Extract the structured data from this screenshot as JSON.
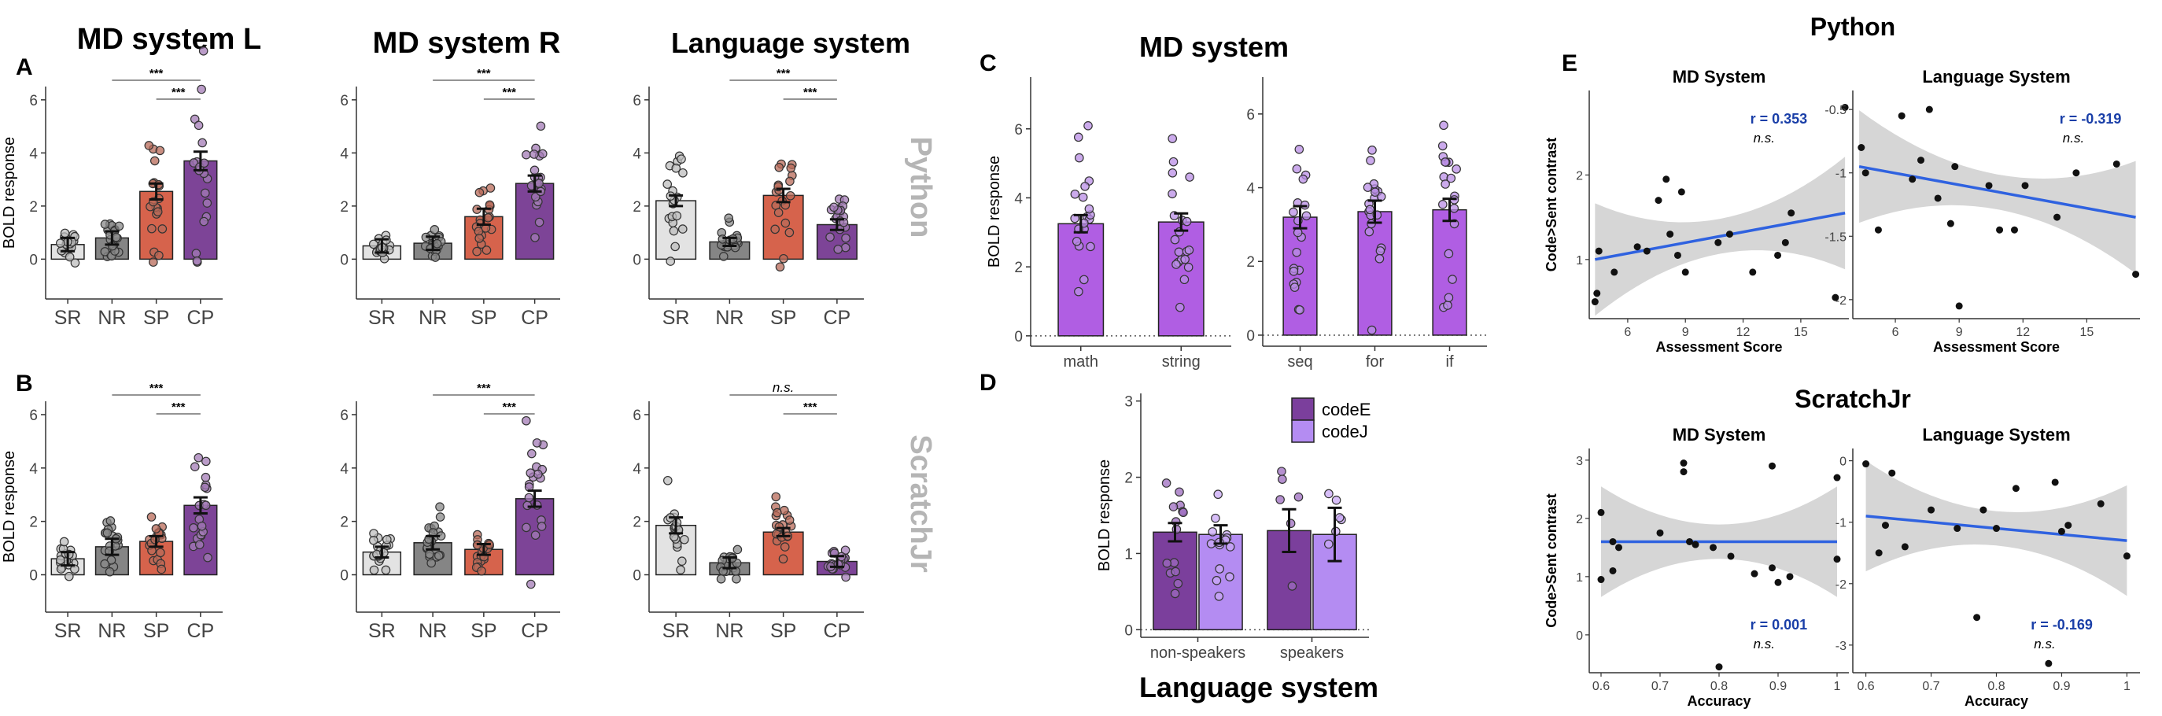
{
  "panel_letters": {
    "A": "A",
    "B": "B",
    "C": "C",
    "D": "D",
    "E": "E"
  },
  "col_titles": {
    "md_left": "MD system L",
    "md_right": "MD system R",
    "lang": "Language system"
  },
  "row_labels": {
    "python": "Python",
    "scratch": "ScratchJr"
  },
  "c_title": "MD system",
  "d_title": "Language system",
  "e_titles": {
    "python": "Python",
    "scratch": "ScratchJr"
  },
  "axis_labels": {
    "bold": "BOLD response",
    "code_sent": "Code>Sent contrast",
    "assessment": "Assessment Score",
    "accuracy": "Accuracy"
  },
  "sig": {
    "stars": "***",
    "ns": "n.s."
  },
  "colors": {
    "SR": "#e3e3e3",
    "NR": "#858585",
    "SP": "#d6634c",
    "CP": "#7d4497",
    "C_bar": "#b05ee3",
    "codeE": "#7b3f9c",
    "codeJ": "#b48cf2",
    "fit": "#2f62e0",
    "band": "#d6d6d6",
    "sigtext": "#1a3fa8"
  },
  "chart_data": [
    {
      "id": "A1",
      "type": "bar",
      "title": "MD system L",
      "categories": [
        "SR",
        "NR",
        "SP",
        "CP"
      ],
      "values": [
        0.55,
        0.8,
        2.55,
        3.7
      ],
      "se": [
        0.25,
        0.25,
        0.3,
        0.35
      ],
      "ylim": [
        -1.5,
        6.5
      ],
      "yticks": [
        0,
        2,
        4,
        6
      ],
      "ylabel": "BOLD response",
      "sig": [
        {
          "from": 1,
          "to": 3,
          "label": "***"
        },
        {
          "from": 2,
          "to": 3,
          "label": "***"
        }
      ]
    },
    {
      "id": "A2",
      "type": "bar",
      "title": "MD system R",
      "categories": [
        "SR",
        "NR",
        "SP",
        "CP"
      ],
      "values": [
        0.5,
        0.6,
        1.6,
        2.85
      ],
      "se": [
        0.25,
        0.25,
        0.3,
        0.3
      ],
      "ylim": [
        -1.5,
        6.5
      ],
      "yticks": [
        0,
        2,
        4,
        6
      ],
      "ylabel": "",
      "sig": [
        {
          "from": 1,
          "to": 3,
          "label": "***"
        },
        {
          "from": 2,
          "to": 3,
          "label": "***"
        }
      ]
    },
    {
      "id": "A3",
      "type": "bar",
      "title": "Language system",
      "categories": [
        "SR",
        "NR",
        "SP",
        "CP"
      ],
      "values": [
        2.2,
        0.65,
        2.4,
        1.3
      ],
      "se": [
        0.2,
        0.15,
        0.25,
        0.2
      ],
      "ylim": [
        -1.5,
        6.5
      ],
      "yticks": [
        0,
        2,
        4,
        6
      ],
      "ylabel": "",
      "sig": [
        {
          "from": 1,
          "to": 3,
          "label": "***"
        },
        {
          "from": 2,
          "to": 3,
          "label": "***"
        }
      ]
    },
    {
      "id": "B1",
      "type": "bar",
      "categories": [
        "SR",
        "NR",
        "SP",
        "CP"
      ],
      "values": [
        0.6,
        1.05,
        1.25,
        2.6
      ],
      "se": [
        0.25,
        0.3,
        0.2,
        0.3
      ],
      "ylim": [
        -1.4,
        6.5
      ],
      "yticks": [
        0,
        2,
        4,
        6
      ],
      "ylabel": "BOLD response",
      "sig": [
        {
          "from": 1,
          "to": 3,
          "label": "***"
        },
        {
          "from": 2,
          "to": 3,
          "label": "***"
        }
      ]
    },
    {
      "id": "B2",
      "type": "bar",
      "categories": [
        "SR",
        "NR",
        "SP",
        "CP"
      ],
      "values": [
        0.85,
        1.2,
        0.95,
        2.85
      ],
      "se": [
        0.2,
        0.25,
        0.2,
        0.3
      ],
      "ylim": [
        -1.4,
        6.5
      ],
      "yticks": [
        0,
        2,
        4,
        6
      ],
      "ylabel": "",
      "sig": [
        {
          "from": 1,
          "to": 3,
          "label": "***"
        },
        {
          "from": 2,
          "to": 3,
          "label": "***"
        }
      ]
    },
    {
      "id": "B3",
      "type": "bar",
      "categories": [
        "SR",
        "NR",
        "SP",
        "CP"
      ],
      "values": [
        1.85,
        0.45,
        1.6,
        0.5
      ],
      "se": [
        0.3,
        0.2,
        0.15,
        0.2
      ],
      "ylim": [
        -1.4,
        6.5
      ],
      "yticks": [
        0,
        2,
        4,
        6
      ],
      "ylabel": "",
      "sig": [
        {
          "from": 1,
          "to": 3,
          "label": "n.s."
        },
        {
          "from": 2,
          "to": 3,
          "label": "***"
        }
      ]
    },
    {
      "id": "C1",
      "type": "bar",
      "title": "MD system",
      "categories": [
        "math",
        "string"
      ],
      "values": [
        3.25,
        3.3
      ],
      "se": [
        0.25,
        0.25
      ],
      "ylim": [
        -0.3,
        7.5
      ],
      "yticks": [
        0,
        2,
        4,
        6
      ],
      "ylabel": "BOLD response"
    },
    {
      "id": "C2",
      "type": "bar",
      "categories": [
        "seq",
        "for",
        "if"
      ],
      "values": [
        3.2,
        3.35,
        3.4
      ],
      "se": [
        0.3,
        0.3,
        0.3
      ],
      "ylim": [
        -0.3,
        7.0
      ],
      "yticks": [
        0,
        2,
        4,
        6
      ],
      "ylabel": ""
    },
    {
      "id": "D",
      "type": "bar",
      "title": "Language system",
      "categories": [
        "non-speakers",
        "speakers"
      ],
      "series": [
        {
          "name": "codeE",
          "values": [
            1.28,
            1.3
          ]
        },
        {
          "name": "codeJ",
          "values": [
            1.25,
            1.25
          ]
        }
      ],
      "se": [
        [
          0.12,
          0.28
        ],
        [
          0.12,
          0.35
        ]
      ],
      "ylim": [
        -0.1,
        3.1
      ],
      "yticks": [
        0,
        1,
        2,
        3
      ],
      "ylabel": "BOLD response"
    },
    {
      "id": "E1",
      "type": "scatter",
      "title": "MD System",
      "xlabel": "Assessment Score",
      "ylabel": "Code>Sent contrast",
      "xlim": [
        4,
        17.5
      ],
      "ylim": [
        0.3,
        3.0
      ],
      "xticks": [
        6,
        9,
        12,
        15
      ],
      "yticks": [
        1,
        2
      ],
      "r": "r =  0.353",
      "sig": "n.s.",
      "fit": [
        [
          4.3,
          1.0
        ],
        [
          17.3,
          1.55
        ]
      ],
      "points": [
        [
          4.3,
          0.5
        ],
        [
          4.4,
          0.6
        ],
        [
          4.5,
          1.1
        ],
        [
          5.3,
          0.85
        ],
        [
          6.5,
          1.15
        ],
        [
          7.0,
          1.1
        ],
        [
          7.6,
          1.7
        ],
        [
          8.0,
          1.95
        ],
        [
          8.2,
          1.3
        ],
        [
          8.6,
          1.05
        ],
        [
          8.8,
          1.8
        ],
        [
          9.0,
          0.85
        ],
        [
          10.7,
          1.2
        ],
        [
          11.3,
          1.3
        ],
        [
          12.5,
          0.85
        ],
        [
          13.8,
          1.05
        ],
        [
          14.2,
          1.2
        ],
        [
          14.5,
          1.55
        ],
        [
          16.8,
          0.55
        ],
        [
          17.3,
          2.8
        ]
      ]
    },
    {
      "id": "E2",
      "type": "scatter",
      "title": "Language System",
      "xlabel": "Assessment Score",
      "ylabel": "",
      "xlim": [
        4,
        17.5
      ],
      "ylim": [
        -2.15,
        -0.35
      ],
      "xticks": [
        6,
        9,
        12,
        15
      ],
      "yticks": [
        -2.0,
        -1.5,
        -1.0,
        -0.5
      ],
      "r": "r =  -0.319",
      "sig": "n.s.",
      "fit": [
        [
          4.3,
          -0.95
        ],
        [
          17.3,
          -1.35
        ]
      ],
      "points": [
        [
          4.4,
          -0.8
        ],
        [
          4.6,
          -1.0
        ],
        [
          5.2,
          -1.45
        ],
        [
          6.3,
          -0.55
        ],
        [
          6.8,
          -1.05
        ],
        [
          7.2,
          -0.9
        ],
        [
          7.6,
          -0.5
        ],
        [
          8.0,
          -1.2
        ],
        [
          8.6,
          -1.4
        ],
        [
          8.8,
          -0.95
        ],
        [
          9.0,
          -2.05
        ],
        [
          10.4,
          -1.1
        ],
        [
          10.9,
          -1.45
        ],
        [
          11.6,
          -1.45
        ],
        [
          12.1,
          -1.1
        ],
        [
          13.6,
          -1.35
        ],
        [
          14.5,
          -1.0
        ],
        [
          16.4,
          -0.93
        ],
        [
          17.3,
          -1.8
        ]
      ]
    },
    {
      "id": "E3",
      "type": "scatter",
      "title": "MD System",
      "xlabel": "Accuracy",
      "ylabel": "Code>Sent contrast",
      "xlim": [
        0.58,
        1.02
      ],
      "ylim": [
        -0.65,
        3.2
      ],
      "xticks": [
        0.6,
        0.7,
        0.8,
        0.9,
        1.0
      ],
      "yticks": [
        0,
        1,
        2,
        3
      ],
      "r": "r =  0.001",
      "sig": "n.s.",
      "fit": [
        [
          0.6,
          1.6
        ],
        [
          1.0,
          1.6
        ]
      ],
      "points": [
        [
          0.6,
          2.1
        ],
        [
          0.6,
          0.95
        ],
        [
          0.62,
          1.1
        ],
        [
          0.62,
          1.6
        ],
        [
          0.63,
          1.5
        ],
        [
          0.7,
          1.75
        ],
        [
          0.74,
          2.95
        ],
        [
          0.74,
          2.8
        ],
        [
          0.75,
          1.6
        ],
        [
          0.76,
          1.55
        ],
        [
          0.79,
          1.5
        ],
        [
          0.8,
          -0.55
        ],
        [
          0.82,
          1.35
        ],
        [
          0.86,
          1.05
        ],
        [
          0.89,
          2.9
        ],
        [
          0.89,
          1.15
        ],
        [
          0.9,
          0.9
        ],
        [
          0.92,
          1.0
        ],
        [
          1.0,
          2.7
        ],
        [
          1.0,
          1.3
        ]
      ]
    },
    {
      "id": "E4",
      "type": "scatter",
      "title": "Language System",
      "xlabel": "Accuracy",
      "ylabel": "",
      "xlim": [
        0.58,
        1.02
      ],
      "ylim": [
        -3.45,
        0.2
      ],
      "xticks": [
        0.6,
        0.7,
        0.8,
        0.9,
        1.0
      ],
      "yticks": [
        -3,
        -2,
        -1,
        0
      ],
      "r": "r =  -0.169",
      "sig": "n.s.",
      "fit": [
        [
          0.6,
          -0.9
        ],
        [
          1.0,
          -1.3
        ]
      ],
      "points": [
        [
          0.6,
          -0.05
        ],
        [
          0.62,
          -1.5
        ],
        [
          0.63,
          -1.05
        ],
        [
          0.64,
          -0.2
        ],
        [
          0.66,
          -1.4
        ],
        [
          0.7,
          -0.8
        ],
        [
          0.74,
          -1.1
        ],
        [
          0.77,
          -2.55
        ],
        [
          0.78,
          -0.8
        ],
        [
          0.8,
          -1.1
        ],
        [
          0.83,
          -0.45
        ],
        [
          0.88,
          -3.3
        ],
        [
          0.89,
          -0.35
        ],
        [
          0.9,
          -1.15
        ],
        [
          0.91,
          -1.05
        ],
        [
          0.96,
          -0.7
        ],
        [
          1.0,
          -1.55
        ]
      ]
    }
  ]
}
